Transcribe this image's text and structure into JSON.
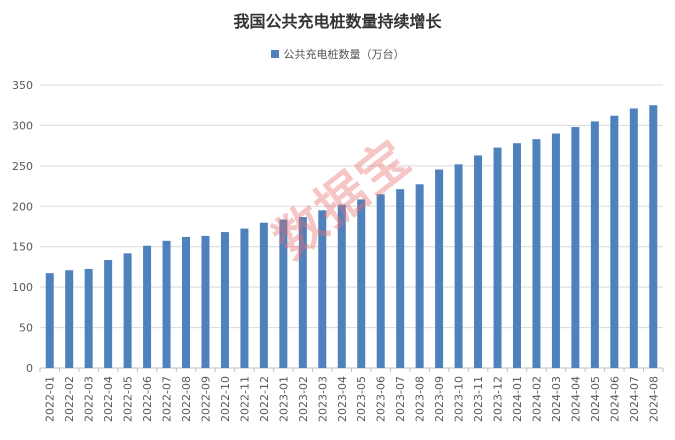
{
  "watermark": "数据宝",
  "chart_data": {
    "type": "bar",
    "title": "我国公共充电桩数量持续增长",
    "legend_position": "top",
    "grid": true,
    "ylim": [
      0,
      350
    ],
    "yticks": [
      0,
      50,
      100,
      150,
      200,
      250,
      300,
      350
    ],
    "categories": [
      "2022-01",
      "2022-02",
      "2022-03",
      "2022-04",
      "2022-05",
      "2022-06",
      "2022-07",
      "2022-08",
      "2022-09",
      "2022-10",
      "2022-11",
      "2022-12",
      "2023-01",
      "2023-02",
      "2023-03",
      "2023-04",
      "2023-05",
      "2023-06",
      "2023-07",
      "2023-08",
      "2023-09",
      "2023-10",
      "2023-11",
      "2023-12",
      "2024-01",
      "2024-02",
      "2024-03",
      "2024-04",
      "2024-05",
      "2024-06",
      "2024-07",
      "2024-08"
    ],
    "series": [
      {
        "name": "公共充电桩数量（万台）",
        "color": "#4f81bd",
        "values": [
          117.3,
          120.9,
          122.5,
          133.6,
          141.8,
          151.2,
          157.3,
          162.1,
          163.4,
          168.1,
          172.4,
          179.7,
          183.6,
          186.7,
          195.0,
          202.0,
          208.5,
          214.9,
          221.2,
          227.2,
          245.5,
          251.9,
          262.9,
          272.6,
          278.0,
          283.0,
          290.0,
          298.0,
          305.0,
          312.0,
          321.0,
          325.0
        ]
      }
    ]
  }
}
